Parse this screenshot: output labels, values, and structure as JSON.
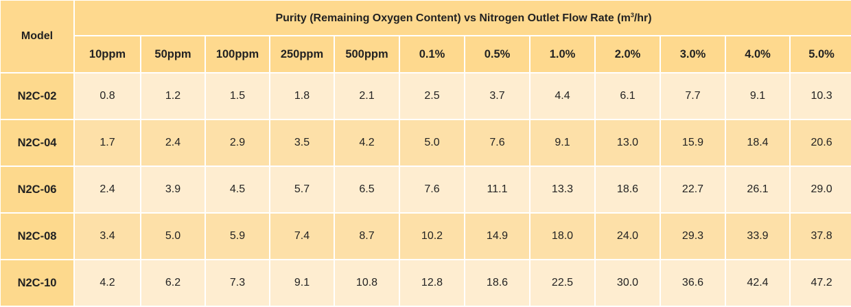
{
  "table": {
    "model_header": "Model",
    "group_header_prefix": "Purity (Remaining Oxygen Content) vs Nitrogen Outlet Flow Rate (m",
    "group_header_sup": "3",
    "group_header_suffix": "/hr)",
    "purity_levels": [
      "10ppm",
      "50ppm",
      "100ppm",
      "250ppm",
      "500ppm",
      "0.1%",
      "0.5%",
      "1.0%",
      "2.0%",
      "3.0%",
      "4.0%",
      "5.0%"
    ],
    "rows": [
      {
        "model": "N2C-02",
        "values": [
          "0.8",
          "1.2",
          "1.5",
          "1.8",
          "2.1",
          "2.5",
          "3.7",
          "4.4",
          "6.1",
          "7.7",
          "9.1",
          "10.3"
        ]
      },
      {
        "model": "N2C-04",
        "values": [
          "1.7",
          "2.4",
          "2.9",
          "3.5",
          "4.2",
          "5.0",
          "7.6",
          "9.1",
          "13.0",
          "15.9",
          "18.4",
          "20.6"
        ]
      },
      {
        "model": "N2C-06",
        "values": [
          "2.4",
          "3.9",
          "4.5",
          "5.7",
          "6.5",
          "7.6",
          "11.1",
          "13.3",
          "18.6",
          "22.7",
          "26.1",
          "29.0"
        ]
      },
      {
        "model": "N2C-08",
        "values": [
          "3.4",
          "5.0",
          "5.9",
          "7.4",
          "8.7",
          "10.2",
          "14.9",
          "18.0",
          "24.0",
          "29.3",
          "33.9",
          "37.8"
        ]
      },
      {
        "model": "N2C-10",
        "values": [
          "4.2",
          "6.2",
          "7.3",
          "9.1",
          "10.8",
          "12.8",
          "18.6",
          "22.5",
          "30.0",
          "36.6",
          "42.4",
          "47.2"
        ]
      }
    ]
  }
}
